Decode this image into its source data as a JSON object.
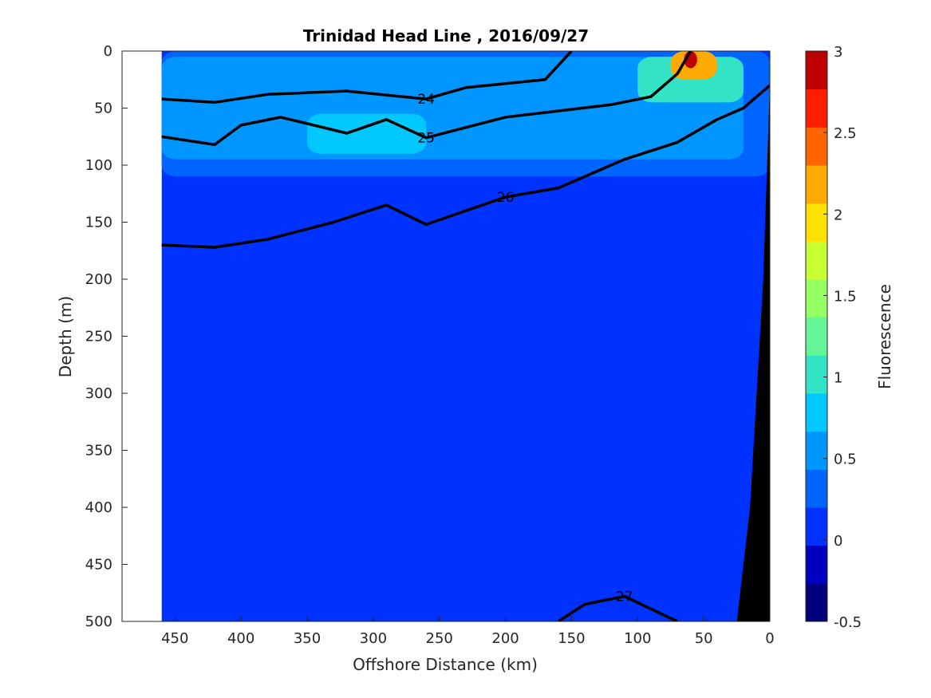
{
  "chart_data": {
    "type": "heatmap",
    "title": "Trinidad Head Line , 2016/09/27",
    "xlabel": "Offshore Distance (km)",
    "ylabel": "Depth (m)",
    "colorbar_label": "Fluorescence",
    "xlim": [
      490,
      0
    ],
    "ylim": [
      0,
      500
    ],
    "x_ticks": [
      450,
      400,
      350,
      300,
      250,
      200,
      150,
      100,
      50,
      0
    ],
    "y_ticks": [
      0,
      50,
      100,
      150,
      200,
      250,
      300,
      350,
      400,
      450,
      500
    ],
    "colorbar_ticks": [
      "3",
      "2.5",
      "2",
      "1.5",
      "1",
      "0.5",
      "0",
      "-0.5"
    ],
    "colorbar_range": [
      -0.5,
      3
    ],
    "color_levels": [
      "#00007f",
      "#0000bf",
      "#0032ff",
      "#0064ff",
      "#0096ff",
      "#00c8ff",
      "#32e3c6",
      "#64f596",
      "#96ff64",
      "#c8ff32",
      "#ffe100",
      "#ffaa00",
      "#ff6400",
      "#ff1e00",
      "#bf0000"
    ],
    "data_extent": {
      "x_max_km": 460,
      "x_min_km": 0
    },
    "fluorescence_regions": [
      {
        "level": 0.0,
        "x": [
          460,
          0
        ],
        "depth": [
          0,
          500
        ],
        "note": "background"
      },
      {
        "level": 0.3,
        "x": [
          460,
          0
        ],
        "depth": [
          0,
          110
        ],
        "note": "upper layer"
      },
      {
        "level": 0.6,
        "x": [
          460,
          20
        ],
        "depth": [
          5,
          95
        ]
      },
      {
        "level": 0.8,
        "x": [
          350,
          260
        ],
        "depth": [
          55,
          90
        ]
      },
      {
        "level": 1.0,
        "x": [
          100,
          20
        ],
        "depth": [
          5,
          45
        ]
      },
      {
        "level": 2.3,
        "x": [
          75,
          40
        ],
        "depth": [
          0,
          25
        ]
      },
      {
        "level": 2.8,
        "x": [
          65,
          55
        ],
        "depth": [
          0,
          15
        ]
      }
    ],
    "density_contours": [
      {
        "value": 24,
        "label": "24",
        "points": [
          [
            460,
            42
          ],
          [
            420,
            45
          ],
          [
            380,
            38
          ],
          [
            320,
            35
          ],
          [
            260,
            42
          ],
          [
            230,
            32
          ],
          [
            170,
            25
          ],
          [
            150,
            0
          ]
        ]
      },
      {
        "value": 25,
        "label": "25",
        "points": [
          [
            460,
            75
          ],
          [
            420,
            82
          ],
          [
            400,
            65
          ],
          [
            370,
            58
          ],
          [
            320,
            72
          ],
          [
            290,
            60
          ],
          [
            260,
            76
          ],
          [
            200,
            58
          ],
          [
            120,
            47
          ],
          [
            90,
            40
          ],
          [
            70,
            20
          ],
          [
            60,
            0
          ]
        ]
      },
      {
        "value": 26,
        "label": "26",
        "points": [
          [
            460,
            170
          ],
          [
            420,
            172
          ],
          [
            380,
            165
          ],
          [
            330,
            150
          ],
          [
            290,
            135
          ],
          [
            260,
            152
          ],
          [
            200,
            128
          ],
          [
            160,
            120
          ],
          [
            110,
            95
          ],
          [
            70,
            80
          ],
          [
            40,
            60
          ],
          [
            20,
            50
          ],
          [
            0,
            30
          ]
        ]
      },
      {
        "value": 27,
        "label": "27",
        "points": [
          [
            160,
            500
          ],
          [
            140,
            485
          ],
          [
            110,
            478
          ],
          [
            70,
            500
          ]
        ]
      }
    ],
    "bathymetry": {
      "color": "#000000",
      "points": [
        [
          0,
          30
        ],
        [
          5,
          200
        ],
        [
          15,
          400
        ],
        [
          25,
          500
        ]
      ]
    }
  }
}
